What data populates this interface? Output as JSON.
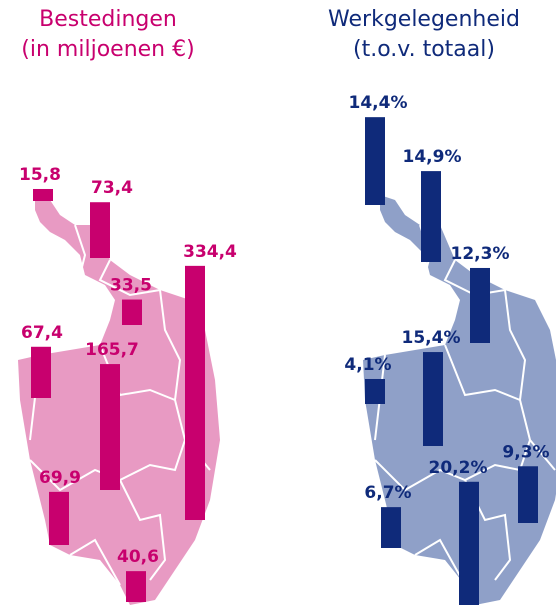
{
  "chart_data": [
    {
      "type": "bar",
      "title": "Bestedingen",
      "subtitle": "(in miljoenen €)",
      "color": "#c8006e",
      "values": [
        15.8,
        73.4,
        33.5,
        334.4,
        67.4,
        165.7,
        69.9,
        40.6
      ],
      "value_labels": [
        "15,8",
        "73,4",
        "33,5",
        "334,4",
        "67,4",
        "165,7",
        "69,9",
        "40,6"
      ]
    },
    {
      "type": "bar",
      "title": "Werkgelegenheid",
      "subtitle": "(t.o.v. totaal)",
      "color": "#0f2a7a",
      "values": [
        14.4,
        14.9,
        12.3,
        15.4,
        4.1,
        9.3,
        6.7,
        20.2
      ],
      "value_labels": [
        "14,4%",
        "14,9%",
        "12,3%",
        "15,4%",
        "4,1%",
        "9,3%",
        "6,7%",
        "20,2%"
      ]
    }
  ]
}
